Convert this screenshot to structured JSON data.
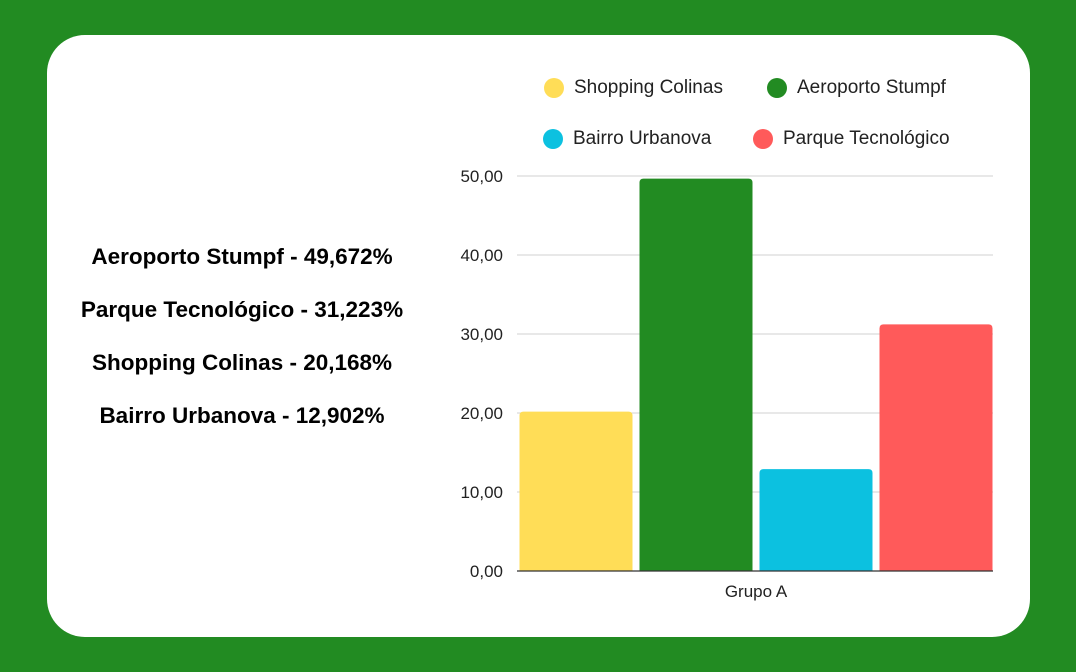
{
  "summary": {
    "lines": [
      "Aeroporto Stumpf - 49,672%",
      "Parque Tecnológico - 31,223%",
      "Shopping Colinas - 20,168%",
      "Bairro Urbanova - 12,902%"
    ]
  },
  "chart_data": {
    "type": "bar",
    "title": "",
    "xlabel": "",
    "ylabel": "",
    "categories": [
      "Grupo A"
    ],
    "series": [
      {
        "name": "Shopping Colinas",
        "values": [
          20.168
        ],
        "color": "#ffdd57"
      },
      {
        "name": "Aeroporto Stumpf",
        "values": [
          49.672
        ],
        "color": "#228b22"
      },
      {
        "name": "Bairro Urbanova",
        "values": [
          12.902
        ],
        "color": "#0cc1e0"
      },
      {
        "name": "Parque Tecnológico",
        "values": [
          31.223
        ],
        "color": "#ff5a5a"
      }
    ],
    "ylim": [
      0,
      50
    ],
    "yticks": [
      "0,00",
      "10,00",
      "20,00",
      "30,00",
      "40,00",
      "50,00"
    ],
    "grid": true,
    "legend_position": "top"
  }
}
